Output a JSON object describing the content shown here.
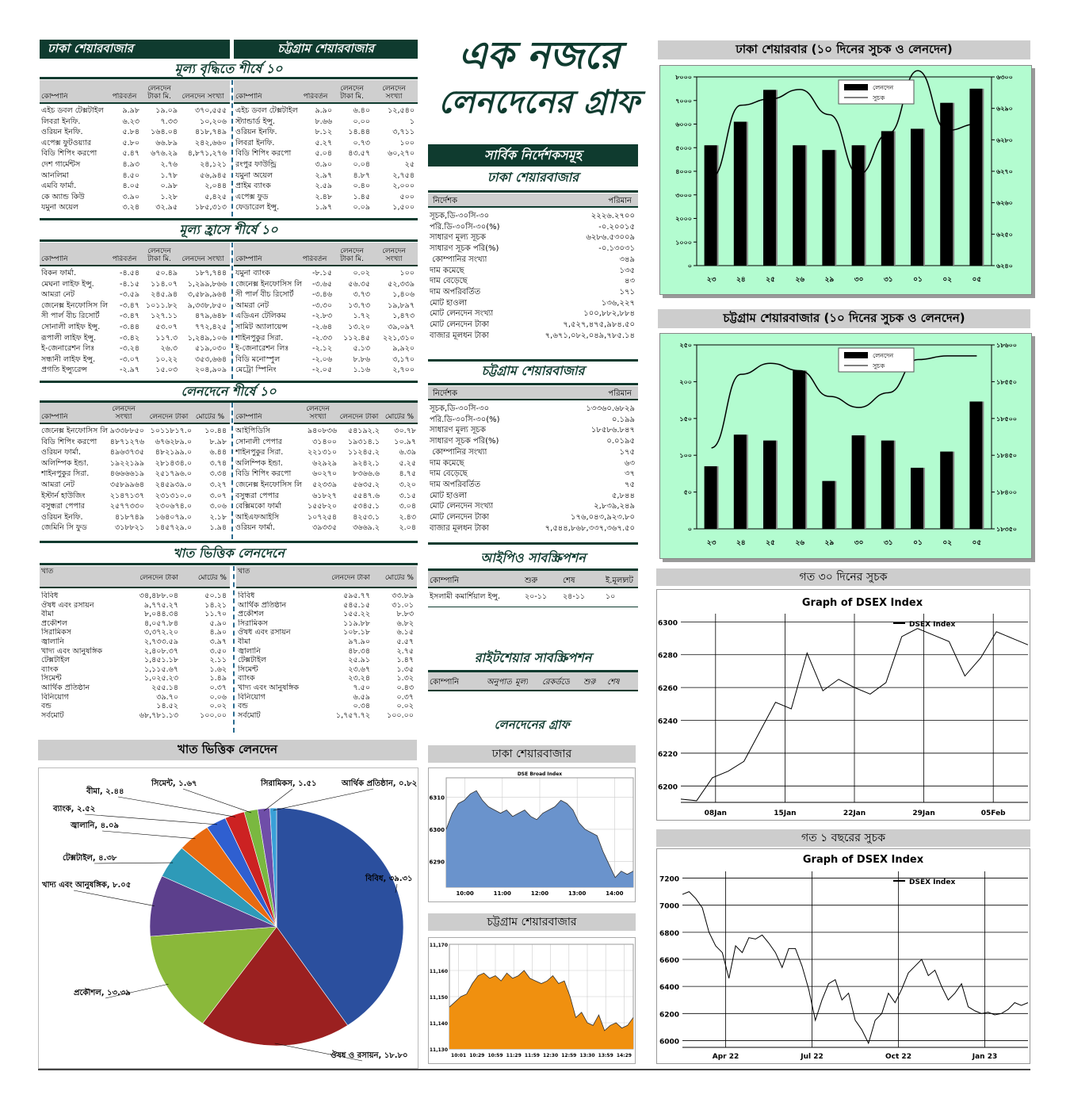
{
  "headers": {
    "dhaka": "ঢাকা শেয়ারবাজার",
    "ctg": "চট্টগ্রাম শেয়ারবাজার",
    "main_title_1": "এক নজরে",
    "main_title_2": "লেনদেনের গ্রাফ"
  },
  "gainers": {
    "title": "মূল্য বৃদ্ধিতে শীর্ষে ১০",
    "cols": [
      "কোম্পানি",
      "পরিবর্তন",
      "লেনদেন টাকা মি.",
      "লেনদেন সংখ্যা"
    ],
    "dse": [
      [
        "এইচ ডবল টেক্সটাইল",
        "৯.৯৮",
        "১৯.০৯",
        "৩৭০,৫৫৫"
      ],
      [
        "লিবরা ইনফি.",
        "৬.২৩",
        "৭.৩৩",
        "১০,২০৬"
      ],
      [
        "ওরিয়ন ইনফি.",
        "৫.৮৪",
        "১৬৪.০৪",
        "৪১৮,৭৪৯"
      ],
      [
        "এপেক্স ফুটওয়্যার",
        "৫.৮০",
        "৬৬.৮৯",
        "২৪২,৬৬০"
      ],
      [
        "বিডি শিপিং করপো",
        "৫.৪৭",
        "৬৭৬.২৯",
        "৪,৮৭১,২৭৬"
      ],
      [
        "দেশ গার্মেন্টস",
        "৪.৯৩",
        "২.৭৬",
        "২৪,১২১"
      ],
      [
        "আনলিমা",
        "৪.৫০",
        "১.৭৮",
        "৫৬,৯৪৫"
      ],
      [
        "এমবি ফার্মা.",
        "৪.০৫",
        "০.৯৮",
        "২,০৪৪"
      ],
      [
        "কে অ্যান্ড কিউ",
        "৩.৯০",
        "১.২৮",
        "৫,৪২৫"
      ],
      [
        "যমুনা অয়েল",
        "৩.২৪",
        "৩২.৯৫",
        "১৮৫,৩১৩"
      ]
    ],
    "cse": [
      [
        "এইচ ডবল টেক্সটাইল",
        "৯.৯০",
        "৬.৪০",
        "১২,৫৪০"
      ],
      [
        "স্ট্যান্ডার্ড ইন্সু.",
        "৮.৬৬",
        "০.০০",
        "১"
      ],
      [
        "ওরিয়ন ইনফি.",
        "৮.১২",
        "১৪.৪৪",
        "৩,৭১১"
      ],
      [
        "লিবরা ইনফি.",
        "৫.২৭",
        "০.৭৩",
        "১০০"
      ],
      [
        "বিডি শিপিং করপো",
        "৫.০৪",
        "৪৩.৫৭",
        "৬০,২৭০"
      ],
      [
        "রংপুর ফাউন্ড্রি",
        "৩.৯০",
        "০.০৪",
        "২৫"
      ],
      [
        "যমুনা অয়েল",
        "২.৯৭",
        "৪.৮৭",
        "২,৭৫৪"
      ],
      [
        "প্রাইম ব্যাংক",
        "২.৫৯",
        "০.৪০",
        "২,০০০"
      ],
      [
        "এপেক্স ফুড",
        "২.৪৮",
        "১.৪৫",
        "৫০০"
      ],
      [
        "ফেডারেল ইন্সু.",
        "১.৯৭",
        "০.০৯",
        "১,৫০০"
      ]
    ]
  },
  "losers": {
    "title": "মূল্য হ্রাসে শীর্ষে ১০",
    "cols": [
      "কোম্পানি",
      "পরিবর্তন",
      "লেনদেন টাকা মি.",
      "লেনদেন সংখ্যা"
    ],
    "dse": [
      [
        "বিকন ফার্মা.",
        "-৪.৫৪",
        "৫০.৪৯",
        "১৮৭,৭৪৪"
      ],
      [
        "মেঘনা লাইফ ইন্সু.",
        "-৪.১৫",
        "১১৪.০৭",
        "১,২৯৯,৮৬৬"
      ],
      [
        "আমরা নেট",
        "-৩.৫৯",
        "২৪৫.৯৪",
        "৩,৫৮৯,৯৬৪"
      ],
      [
        "জেনেক্স ইনফোসিস লি",
        "-৩.৪৭",
        "১০১১.৮২",
        "৯,৩৩৮,৮৫০"
      ],
      [
        "সী পার্ল বীচ রিসোর্ট",
        "-৩.৪৭",
        "১২৭.১১",
        "৪৭৯,৬৪৮"
      ],
      [
        "সোনালী লাইফ ইন্সু.",
        "-৩.৪৪",
        "৫৩.০৭",
        "৭৭২,৪২৫"
      ],
      [
        "রূপালী লাইফ ইন্সু.",
        "-৩.৪২",
        "১১৭.৩",
        "১,২৪৯,১০৬"
      ],
      [
        "ই-জেনারেশন লিঃ",
        "-৩.২৪",
        "২৬.৩",
        "৫১৯,০৩০"
      ],
      [
        "সন্ধানী লাইফ ইন্সু.",
        "-৩.০৭",
        "১০.২২",
        "৩৫৩,৬৬৪"
      ],
      [
        "প্রগতি ইন্স্যুরেন্স",
        "-২.৯৭",
        "১৫.০৩",
        "২০৪,৯০৯"
      ]
    ],
    "cse": [
      [
        "যমুনা ব্যাংক",
        "-৮.১৫",
        "০.০২",
        "১০০"
      ],
      [
        "জেনেক্স ইনফোসিস লি",
        "-৩.৬৫",
        "৫৬.৩৫",
        "৫২,৩৩৯"
      ],
      [
        "সী পার্ল বীচ রিসোর্ট",
        "-৩.৪৬",
        "৩.৭৩",
        "১,৪০৬"
      ],
      [
        "আমরা নেট",
        "-৩.৩০",
        "১৩.৭৩",
        "১৯,৮৯৭"
      ],
      [
        "এডিএন টেলিকম",
        "-২.৮৩",
        "১.৭২",
        "১,৪৭৩"
      ],
      [
        "সামিট অ্যালায়েন্স",
        "-২.৬৪",
        "১৩.২০",
        "৩৯,০৯৭"
      ],
      [
        "শাইনপুকুর সিরা.",
        "-২.৩৩",
        "১১২.৪৫",
        "২২১,৩১০"
      ],
      [
        "ই-জেনারেশন লিঃ",
        "-২.১২",
        "৫.১৩",
        "৯,৯২০"
      ],
      [
        "বিডি মনোস্পুল",
        "-২.০৬",
        "৮.৮৬",
        "৩,১৭০"
      ],
      [
        "মেট্রো স্পিনিং",
        "-২.০৫",
        "১.১৬",
        "২,৭০০"
      ]
    ]
  },
  "volume": {
    "title": "লেনদেনে শীর্ষে ১০",
    "cols": [
      "কোম্পানি",
      "লেনদেন সংখ্যা",
      "লেনদেন টাকা",
      "মোটের %"
    ],
    "dse": [
      [
        "জেনেক্স ইনফোসিস লি",
        "৯৩৩৮৮৫০",
        "১০১১৮১৭.০",
        "১০.৪৪"
      ],
      [
        "বিডি শিপিং করপো",
        "৪৮৭১২৭৬",
        "৬৭৬২৮৯.০",
        "৮.৯৮"
      ],
      [
        "ওরিয়ন ফার্মা.",
        "৪৯৬৩৭৩৫",
        "৪৮২১৯৯.০",
        "৬.৪৪"
      ],
      [
        "অলিম্পিক ইন্ডা.",
        "১৯২২১৯৯",
        "২৮১৪৩৪.০",
        "৩.৭৪"
      ],
      [
        "শাইনপুকুর সিরা.",
        "৪৬৬৬৬১৯",
        "২৫১৭৯৬.০",
        "৩.৩৪"
      ],
      [
        "আমরা নেট",
        "৩৫৮৯৯৬৪",
        "২৪৫৯৩৯.০",
        "৩.২৭"
      ],
      [
        "ইস্টার্ন হাউজিং",
        "২১৪৭১৩৭",
        "২৩১৩১০.০",
        "৩.০৭"
      ],
      [
        "বসুন্ধরা পেপার",
        "২৫৭৭৩৩০",
        "২৩০৬৭৪.০",
        "৩.০৬"
      ],
      [
        "ওরিয়ন ইনফি.",
        "৪১৮৭৪৯",
        "১৬৪০৭৯.০",
        "২.১৮"
      ],
      [
        "জেমিনি সি ফুড",
        "৩১৮৮২১",
        "১৪৫৭২৯.০",
        "১.৯৪"
      ]
    ],
    "cse": [
      [
        "আইপিডিসি",
        "৯৪০৮৩৬",
        "৫৪১৯২.২",
        "৩০.৭৮"
      ],
      [
        "সোনালী পেপার",
        "৩১৪০০",
        "১৯৩১৪.১",
        "১০.৯৭"
      ],
      [
        "শাইনপুকুর সিরা.",
        "২২১৩১০",
        "১১২৪৫.২",
        "৬.৩৯"
      ],
      [
        "অলিম্পিক ইন্ডা.",
        "৬২৯২৯",
        "৯২৪২.১",
        "৫.২৫"
      ],
      [
        "বিডি শিপিং করপো",
        "৬০২৭০",
        "৮৩৬৬.৬",
        "৪.৭৫"
      ],
      [
        "জেনেক্স ইনফোসিস লি",
        "৫২৩৩৯",
        "৫৬৩৫.২",
        "৩.২০"
      ],
      [
        "বসুন্ধরা পেপার",
        "৬১৮২৭",
        "৫৫৪৭.৬",
        "৩.১৫"
      ],
      [
        "বেক্সিমকো ফার্মা",
        "১৫৫৮২০",
        "৫৩৪৫.১",
        "৩.০৪"
      ],
      [
        "আইএফআইসি",
        "১০৭২৫৪",
        "৪২৫৩.১",
        "২.৪৩"
      ],
      [
        "ওরিয়ন ফার্মা.",
        "৩৯৩৩৫",
        "৩৬৬৯.২",
        "২.০৪"
      ]
    ]
  },
  "sector": {
    "title": "খাত ভিত্তিক লেনদেনে",
    "cols": [
      "খাত",
      "লেনদেন টাকা",
      "মোটের %"
    ],
    "dse": [
      [
        "বিবিধ",
        "৩৪,৪৮৮.০৪",
        "৫০.১৪"
      ],
      [
        "ঔষধ এবং রসায়ন",
        "৯,৭৭৫.২৭",
        "১৪.২১"
      ],
      [
        "বীমা",
        "৮,০৪৪.৩৪",
        "১১.৭০"
      ],
      [
        "প্রকৌশল",
        "৪,০৫৭.৮৪",
        "৫.৯০"
      ],
      [
        "সিরামিকস",
        "৩,৩৭২.২০",
        "৪.৯০"
      ],
      [
        "জ্বালানি",
        "২,৭৩৩.৫৯",
        "৩.৯৭"
      ],
      [
        "খাদ্য এবং আনুষঙ্গিক",
        "২,৪০৮.৩৭",
        "৩.৫০"
      ],
      [
        "টেক্সটাইল",
        "১,৪৫১.১৮",
        "২.১১"
      ],
      [
        "ব্যাংক",
        "১,১১৫.৬৭",
        "১.৬২"
      ],
      [
        "সিমেন্ট",
        "১,০২৫.২৩",
        "১.৪৯"
      ],
      [
        "আর্থিক প্রতিষ্ঠান",
        "২৫৫.১৪",
        "০.৩৭"
      ],
      [
        "বিনিয়োগ",
        "৩৯.৭০",
        "০.০৬"
      ],
      [
        "বন্ড",
        "১৪.৫২",
        "০.০২"
      ],
      [
        "সর্বমোট",
        "৬৮,৭৮১.১৩",
        "১০০.০০"
      ]
    ],
    "cse": [
      [
        "বিবিধ",
        "৫৯৫.৭৭",
        "৩৩.৮৯"
      ],
      [
        "আর্থিক প্রতিষ্ঠান",
        "৫৪৫.১৫",
        "৩১.০১"
      ],
      [
        "প্রকৌশল",
        "১৫৫.২২",
        "৮.৮৩"
      ],
      [
        "সিরামিকস",
        "১১৯.৮৮",
        "৬.৮২"
      ],
      [
        "ঔষধ এবং রসায়ন",
        "১০৮.১৮",
        "৬.১৫"
      ],
      [
        "বীমা",
        "৯৭.৯০",
        "৫.৫৭"
      ],
      [
        "জ্বালানি",
        "৪৮.৩৪",
        "২.৭৫"
      ],
      [
        "টেক্সটাইল",
        "২৫.৯১",
        "১.৪৭"
      ],
      [
        "সিমেন্ট",
        "২৩.৬৭",
        "১.৩৫"
      ],
      [
        "ব্যাংক",
        "২৩.২৪",
        "১.৩২"
      ],
      [
        "খাদ্য এবং আনুষঙ্গিক",
        "৭.৫০",
        "০.৪৩"
      ],
      [
        "বিনিয়োগ",
        "৬.৫৯",
        "০.৩৭"
      ],
      [
        "বন্ড",
        "০.৩৪",
        "০.০২"
      ],
      [
        "সর্বমোট",
        "১,৭৫৭.৭২",
        "১০০.০০"
      ]
    ]
  },
  "indices": {
    "title": "সার্বিক নির্দেশকসমূহ",
    "cols": [
      "নির্দেশক",
      "পরিমান"
    ],
    "dse": [
      [
        "সূচক,ডি-৩০সি-৩০",
        "২২২৬.২৭০০"
      ],
      [
        "পরি.ডি-৩০সি-৩০(%)",
        "-০.২০০১৫"
      ],
      [
        "সাধারণ মূল্য সূচক",
        "৬২৮৬.৫৩০০৯"
      ],
      [
        "সাধারণ সূচক পরি(%)",
        "-০.১৩০৩১"
      ],
      [
        " কোম্পানির সংখ্যা",
        "৩৪৯"
      ],
      [
        "দাম কমেছে",
        "১৩৫"
      ],
      [
        "দাম বেড়েছে",
        "৪৩"
      ],
      [
        "দাম অপরিবর্তিত",
        "১৭১"
      ],
      [
        "মোট হাওলা",
        "১৩৬,২২৭"
      ],
      [
        "মোট লেনদেন সংখ্যা",
        "১০০,৮৮২,৮৮৪"
      ],
      [
        "মোট লেনদেন টাকা",
        "৭,৫২৭,৪৭৫,৯৮৪.৫০"
      ],
      [
        "বাজার মূলধন টাকা",
        "৭,৬৭১,০৮২,০৪৯,৭৮৫.১৪"
      ]
    ],
    "cse": [
      [
        "সূচক,ডি-৩০সি-৩০",
        "১৩৩৬০.৬৮২৯"
      ],
      [
        "পরি.ডি-৩০সি-৩০(%)",
        "০.১৯৯"
      ],
      [
        "সাধারণ মূল্য সূচক",
        "১৮৫৮৬.৮৪৭"
      ],
      [
        "সাধারণ সূচক পরি(%)",
        "০.০১৯৫"
      ],
      [
        " কোম্পানির সংখ্যা",
        "১৭৫"
      ],
      [
        "দাম কমেছে",
        "৬৩"
      ],
      [
        "দাম বেড়েছে",
        "৩৭"
      ],
      [
        "দাম অপরিবর্তিত",
        "৭৫"
      ],
      [
        "মোট হাওলা",
        "৫,৮৪৪"
      ],
      [
        "মোট লেনদেন সংখ্যা",
        "২,৮৩৯,২৪৯"
      ],
      [
        "মোট লেনদেন টাকা",
        "১৭৬,০৪৩,৯২৩.৮০"
      ],
      [
        "বাজার মূলধন টাকা",
        "৭,৫৪৪,৮৬৮,৩৩৭,৩৬৭.৫০"
      ]
    ]
  },
  "ipo": {
    "title": "আইপিও সাবস্ক্রিপশন",
    "cols": [
      "কোম্পানি",
      "শুরু",
      "শেষ",
      "ই.মূল্য",
      "লট"
    ],
    "rows": [
      [
        "ইসলামী কমার্শিয়াল ইন্সু.",
        "২০-১১",
        "২৪-১১",
        "১০",
        ""
      ]
    ]
  },
  "rights": {
    "title": "রাইটশেয়ার সাবস্ক্রিপশন",
    "cols": [
      "কোম্পানি",
      "অনুপাত",
      "মূল্য",
      "রেকর্ডডে",
      "শুরু",
      "শেষ"
    ]
  },
  "small_graph_title": "লেনদেনের গ্রাফ",
  "pie_title": "খাত ভিত্তিক লেনদেন",
  "chart_data": [
    {
      "type": "bar+line",
      "title": "ঢাকা শেয়ারবার (১০ দিনের সুচক ও লেনদেন)",
      "categories": [
        "২৩",
        "২৪",
        "২৫",
        "২৬",
        "২৯",
        "৩০",
        "৩১",
        "০১",
        "০২",
        "০৫"
      ],
      "series": [
        {
          "name": "লেনদেন",
          "type": "bar",
          "values": [
            5100,
            6100,
            7450,
            5100,
            4900,
            5100,
            5700,
            5800,
            6900,
            7500
          ]
        },
        {
          "name": "সুচক",
          "type": "line",
          "values": [
            6268,
            6291,
            6293,
            6296,
            6288,
            6269,
            6282,
            6302,
            6283,
            6285
          ]
        }
      ],
      "ylim": [
        0,
        8000
      ],
      "y2lim": [
        6240,
        6300
      ],
      "yticks": [
        "০",
        "১০০০",
        "২০০০",
        "৩০০০",
        "৪০০০",
        "৫০০০",
        "৬০০০",
        "৭০০০",
        "৮০০০"
      ],
      "y2ticks": [
        "৬২৪০",
        "৬২৫০",
        "৬২৬০",
        "৬২৭০",
        "৬২৮০",
        "৬২৯০",
        "৬৩০০"
      ]
    },
    {
      "type": "bar+line",
      "title": "চট্টগ্রাম শেয়ারবাজার (১০ দিনের সুচক ও লেনদেন)",
      "categories": [
        "২৩",
        "২৪",
        "২৫",
        "২৬",
        "২৯",
        "৩০",
        "৩১",
        "০১",
        "০২",
        "০৫"
      ],
      "series": [
        {
          "name": "লেনদেন",
          "type": "bar",
          "values": [
            85,
            128,
            120,
            215,
            65,
            127,
            120,
            83,
            105,
            173
          ]
        },
        {
          "name": "সুচক",
          "type": "line",
          "values": [
            18460,
            18560,
            18575,
            18565,
            18530,
            18515,
            18535,
            18580,
            18585,
            18585
          ]
        }
      ],
      "ylim": [
        0,
        250
      ],
      "y2lim": [
        18350,
        18600
      ],
      "yticks": [
        "০",
        "৫০",
        "১০০",
        "১৫০",
        "২০০",
        "২৫০"
      ],
      "y2ticks": [
        "১৮৩৫০",
        "১৮৪০০",
        "১৮৪৫০",
        "১৮৫০০",
        "১৮৫৫০",
        "১৮৬০০"
      ]
    },
    {
      "type": "line",
      "panel_title": "গত ৩০ দিনের সুচক",
      "title": "Graph of DSEX Index",
      "legend": "DSEX Index",
      "x_labels": [
        "08Jan",
        "15Jan",
        "22Jan",
        "29Jan",
        "05Feb"
      ],
      "yticks": [
        "6200",
        "6220",
        "6240",
        "6260",
        "6280",
        "6300"
      ],
      "ylim": [
        6190,
        6305
      ],
      "values": [
        6192,
        6191,
        6205,
        6209,
        6215,
        6233,
        6251,
        6247,
        6281,
        6258,
        6265,
        6260,
        6256,
        6263,
        6291,
        6296,
        6292,
        6288,
        6267,
        6278,
        6294,
        6290,
        6286
      ]
    },
    {
      "type": "line",
      "panel_title": "গত ১ বছরের সুচক",
      "title": "Graph of DSEX Index",
      "legend": "DSEX Index",
      "x_labels": [
        "Apr 22",
        "Jul 22",
        "Oct 22",
        "Jan 23"
      ],
      "yticks": [
        "6000",
        "6200",
        "6400",
        "6600",
        "6800",
        "7000",
        "7200"
      ],
      "ylim": [
        5950,
        7250
      ],
      "values": [
        7080,
        7100,
        7050,
        6980,
        6800,
        6700,
        6650,
        6460,
        6700,
        6650,
        6760,
        6750,
        6780,
        6720,
        6650,
        6540,
        6680,
        6680,
        6550,
        6380,
        6150,
        6300,
        6420,
        6450,
        6300,
        6350,
        6150,
        6080,
        5980,
        6150,
        6200,
        6350,
        6280,
        6380,
        6500,
        6550,
        6600,
        6480,
        6520,
        6400,
        6300,
        6350,
        6420,
        6250,
        6220,
        6200,
        6210,
        6190,
        6200,
        6230,
        6280,
        6260,
        6280
      ]
    },
    {
      "type": "area",
      "panel_title": "ঢাকা শেয়ারবাজার",
      "title": "DSE Broad Index",
      "x_labels": [
        "10:00",
        "11:00",
        "12:00",
        "13:00",
        "14:00"
      ],
      "yticks": [
        "6290",
        "6300",
        "6310"
      ],
      "ylim": [
        6282,
        6316
      ],
      "values": [
        6300,
        6305,
        6308,
        6309,
        6311,
        6312,
        6309,
        6307,
        6306,
        6305,
        6306,
        6304,
        6305,
        6306,
        6304,
        6303,
        6305,
        6306,
        6307,
        6309,
        6308,
        6306,
        6302,
        6300,
        6299,
        6298,
        6293,
        6289,
        6285,
        6287,
        6286,
        6287
      ]
    },
    {
      "type": "area",
      "panel_title": "চট্টগ্রাম শেয়ারবাজার",
      "x_labels": [
        "10:01",
        "10:29",
        "10:59",
        "11:29",
        "11:59",
        "12:30",
        "12:59",
        "13:30",
        "13:59",
        "14:29"
      ],
      "yticks": [
        "11,130",
        "11,140",
        "11,150",
        "11,160",
        "11,170"
      ],
      "ylim": [
        11130,
        11170
      ],
      "values": [
        11146,
        11148,
        11150,
        11151,
        11155,
        11158,
        11159,
        11157,
        11158,
        11156,
        11159,
        11157,
        11158,
        11160,
        11157,
        11156,
        11155,
        11156,
        11158,
        11155,
        11156,
        11150,
        11142,
        11144,
        11140,
        11139,
        11143,
        11137,
        11139,
        11140,
        11138,
        11139,
        11142
      ]
    },
    {
      "type": "pie",
      "title": "খাত ভিত্তিক লেনদেন",
      "labels": [
        "বিবিধ, ৩৯.৩১",
        "ঔষধ ও রসায়ন, ১৮.৮০",
        "প্রকৌশল, ১৩.৩৯",
        "খাদ্য এবং আনুষঙ্গিক, ৮.০৫",
        "টেক্সটাইল, ৪.৩৮",
        "জ্বালানি, ৪.০৯",
        "ব্যাংক, ২.৫২",
        "বীমা, ২.৪৪",
        "সিমেন্ট, ১.৬৭",
        "সিরামিকস, ১.৫১",
        "আর্থিক প্রতিষ্ঠান, ০.৮২"
      ],
      "values": [
        39.31,
        18.8,
        13.39,
        8.05,
        4.38,
        4.09,
        2.52,
        2.44,
        1.67,
        1.51,
        0.82
      ],
      "colors": [
        "#2b4f9e",
        "#9b2020",
        "#8ab83a",
        "#5c3f8c",
        "#2e9ab8",
        "#e86a10",
        "#2f5fd0",
        "#cc2222",
        "#7ab840",
        "#6f4ea8",
        "#3aa0d8"
      ]
    }
  ]
}
